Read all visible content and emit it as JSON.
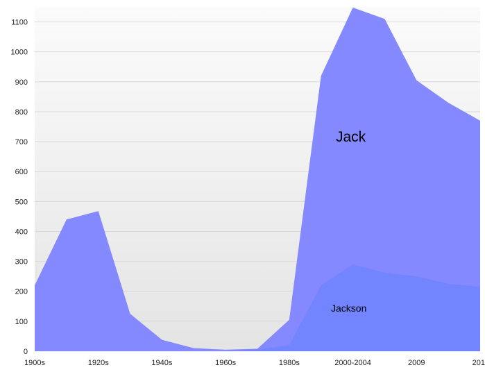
{
  "chart_data": {
    "type": "area",
    "title": "",
    "xlabel": "",
    "ylabel": "",
    "ylim": [
      0,
      1150
    ],
    "y_ticks": [
      0,
      100,
      200,
      300,
      400,
      500,
      600,
      700,
      800,
      900,
      1000,
      1100
    ],
    "x_ticks": [
      {
        "label": "1900s",
        "x": 0
      },
      {
        "label": "1920s",
        "x": 2
      },
      {
        "label": "1940s",
        "x": 4
      },
      {
        "label": "1960s",
        "x": 6
      },
      {
        "label": "1980s",
        "x": 8
      },
      {
        "label": "2000-2004",
        "x": 10
      },
      {
        "label": "2009",
        "x": 12
      },
      {
        "label": "201",
        "x": 14
      }
    ],
    "x_range": [
      0,
      14
    ],
    "grid": true,
    "legend": "none",
    "series": [
      {
        "name": "Jack",
        "color": "#8589ff",
        "label_size": "large",
        "x": [
          0,
          1,
          2,
          3,
          4,
          5,
          6,
          7,
          8,
          9,
          10,
          11,
          12,
          13,
          14
        ],
        "values": [
          220,
          440,
          468,
          125,
          38,
          10,
          5,
          8,
          105,
          920,
          1148,
          1110,
          905,
          830,
          770
        ]
      },
      {
        "name": "Jackson",
        "color": "#7384ff",
        "label_size": "small",
        "x": [
          0,
          1,
          2,
          3,
          4,
          5,
          6,
          7,
          8,
          9,
          10,
          11,
          12,
          13,
          14
        ],
        "values": [
          0,
          0,
          0,
          0,
          0,
          0,
          0,
          5,
          20,
          220,
          290,
          262,
          250,
          225,
          215
        ]
      }
    ]
  }
}
